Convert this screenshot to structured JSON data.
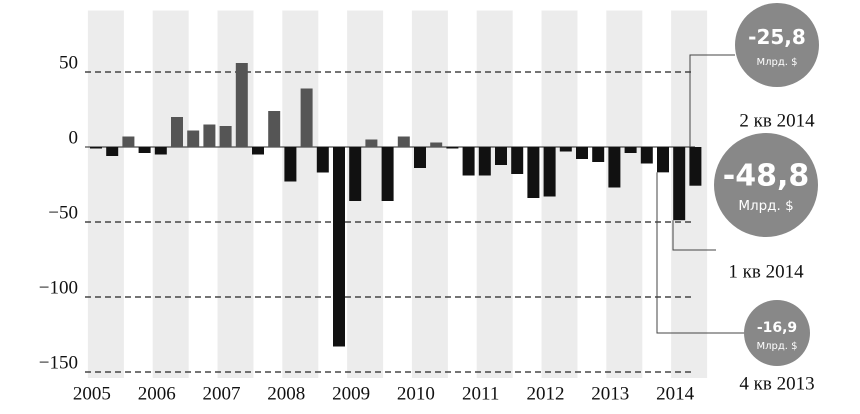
{
  "chart_data": {
    "type": "bar",
    "values": [
      -1,
      -6,
      7,
      -4,
      -5,
      20,
      11,
      15,
      14,
      56,
      -5,
      24,
      -23,
      39,
      -17,
      -133,
      -36,
      5,
      -36,
      7,
      -14,
      3,
      -1,
      -19,
      -19,
      -12,
      -18,
      -34,
      -33,
      -3,
      -8,
      -10,
      -27,
      -4,
      -11,
      -16.9,
      -48.8,
      -25.8
    ],
    "value_labels": [
      null,
      null,
      null,
      null,
      null,
      null,
      null,
      null,
      null,
      null,
      null,
      null,
      null,
      null,
      null,
      null,
      null,
      null,
      null,
      null,
      null,
      null,
      null,
      null,
      null,
      null,
      null,
      null,
      null,
      null,
      null,
      null,
      null,
      null,
      null,
      "-16,9",
      "-48,8",
      "-25,8"
    ],
    "period_labels": [
      null,
      null,
      null,
      null,
      null,
      null,
      null,
      null,
      null,
      null,
      null,
      null,
      null,
      null,
      null,
      null,
      null,
      null,
      null,
      null,
      null,
      null,
      null,
      null,
      null,
      null,
      null,
      null,
      null,
      null,
      null,
      null,
      null,
      null,
      null,
      "4 кв 2013",
      "1 кв 2014",
      "2 кв 2014"
    ],
    "unit": "Млрд. $",
    "year_labels": [
      "2005",
      "2006",
      "2007",
      "2008",
      "2009",
      "2010",
      "2011",
      "2012",
      "2013",
      "2014"
    ],
    "color_positive": "#555555",
    "color_negative": "#111111",
    "ylim": [
      -154,
      91
    ],
    "yticks": [
      50,
      0,
      {
        "value": -50,
        "label": "−50"
      },
      {
        "value": -100,
        "label": "−100"
      },
      {
        "value": -150,
        "label": "−150"
      }
    ],
    "grid": true
  }
}
